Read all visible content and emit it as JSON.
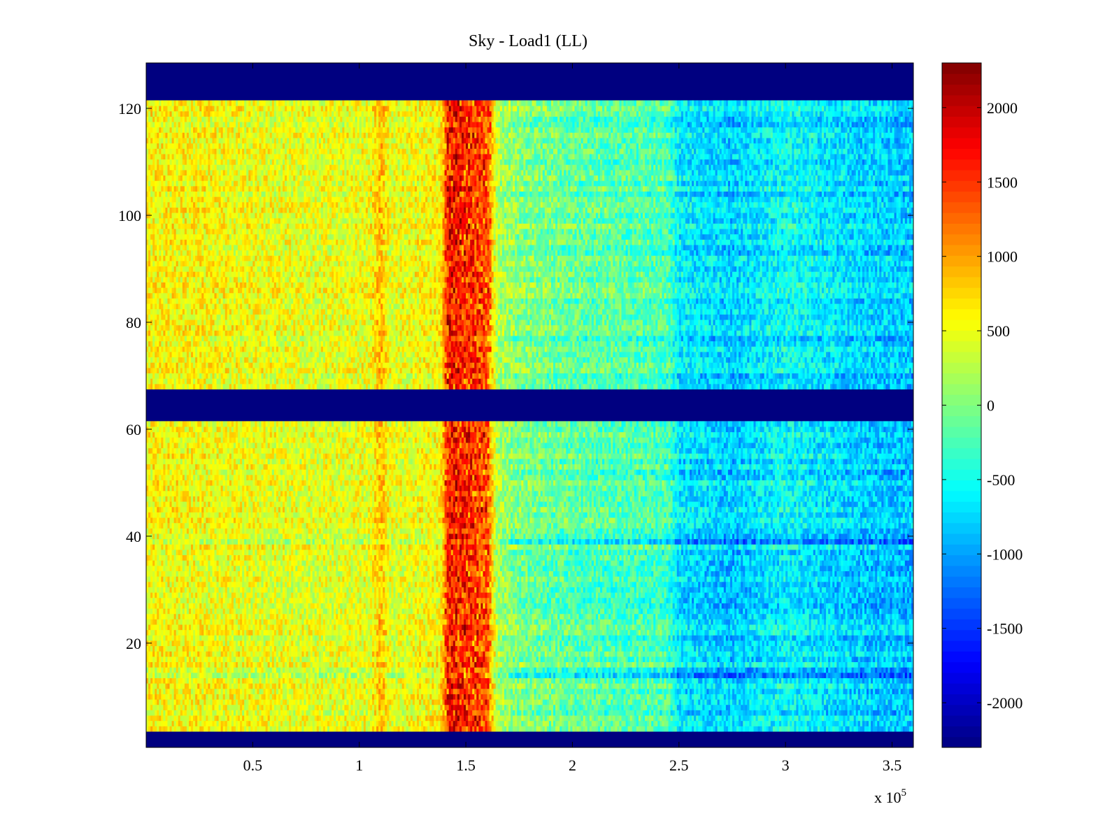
{
  "chart_data": {
    "type": "heatmap",
    "title": "Sky - Load1 (LL)",
    "xlabel": "",
    "ylabel": "",
    "x_exponent_label": "x 10",
    "x_exponent_sup": "5",
    "xlim": [
      0,
      3.6
    ],
    "ylim": [
      0.5,
      128.5
    ],
    "x_ticks": [
      0.5,
      1,
      1.5,
      2,
      2.5,
      3,
      3.5
    ],
    "x_tick_labels": [
      "0.5",
      "1",
      "1.5",
      "2",
      "2.5",
      "3",
      "3.5"
    ],
    "y_ticks": [
      20,
      40,
      60,
      80,
      100,
      120
    ],
    "y_tick_labels": [
      "20",
      "40",
      "60",
      "80",
      "100",
      "120"
    ],
    "colorbar": {
      "colormap": "jet",
      "clim": [
        -2300,
        2300
      ],
      "ticks": [
        -2000,
        -1500,
        -1000,
        -500,
        0,
        500,
        1000,
        1500,
        2000
      ],
      "tick_labels": [
        "-2000",
        "-1500",
        "-1000",
        "-500",
        "0",
        "500",
        "1000",
        "1500",
        "2000"
      ]
    },
    "masked_row_ranges": [
      [
        1,
        3
      ],
      [
        62,
        67
      ],
      [
        122,
        128
      ]
    ],
    "masked_value": -2300,
    "data_row_ranges": [
      [
        4,
        61
      ],
      [
        68,
        121
      ]
    ],
    "x_bins": 360,
    "column_profile_x": [
      0,
      0.3,
      0.8,
      1.05,
      1.1,
      1.15,
      1.38,
      1.42,
      1.6,
      1.65,
      1.75,
      2.0,
      2.45,
      2.5,
      2.75,
      3.0,
      3.3,
      3.6
    ],
    "column_profile_value": [
      600,
      550,
      450,
      500,
      900,
      450,
      600,
      1500,
      1200,
      200,
      0,
      -150,
      -250,
      -650,
      -800,
      -550,
      -750,
      -850
    ],
    "band_rows": [
      14,
      15,
      39,
      77
    ],
    "grid": false,
    "legend": "none"
  },
  "colors": {
    "background": "#ffffff",
    "axes": "#000000",
    "mask": "#00008f"
  }
}
